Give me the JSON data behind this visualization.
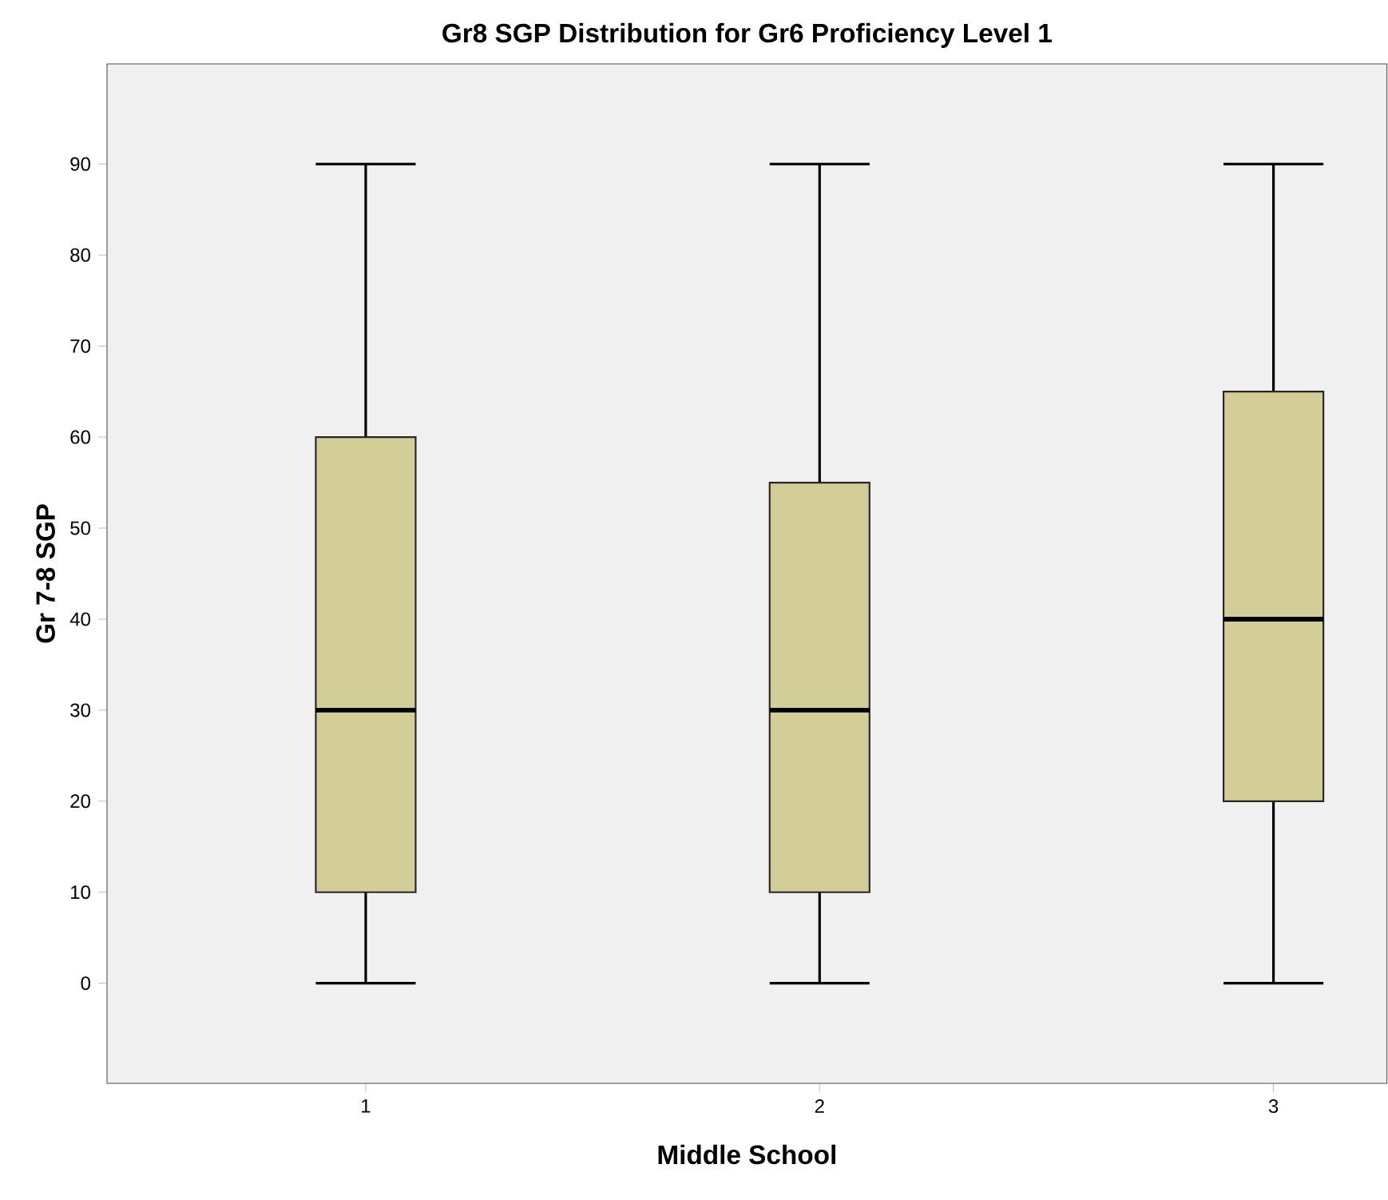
{
  "chart_data": {
    "type": "box",
    "title": "Gr8 SGP Distribution for Gr6 Proficiency Level 1",
    "xlabel": "Middle School",
    "ylabel": "Gr 7-8 SGP",
    "categories": [
      "1",
      "2",
      "3"
    ],
    "color": "#d3ce98",
    "ylim": [
      -11,
      101
    ],
    "yticks": [
      0,
      10,
      20,
      30,
      40,
      50,
      60,
      70,
      80,
      90
    ],
    "grid": false,
    "boxes": [
      {
        "low": 0,
        "q1": 10,
        "median": 30,
        "q3": 60,
        "high": 90
      },
      {
        "low": 0,
        "q1": 10,
        "median": 30,
        "q3": 55,
        "high": 90
      },
      {
        "low": 0,
        "q1": 20,
        "median": 40,
        "q3": 65,
        "high": 90
      }
    ]
  }
}
